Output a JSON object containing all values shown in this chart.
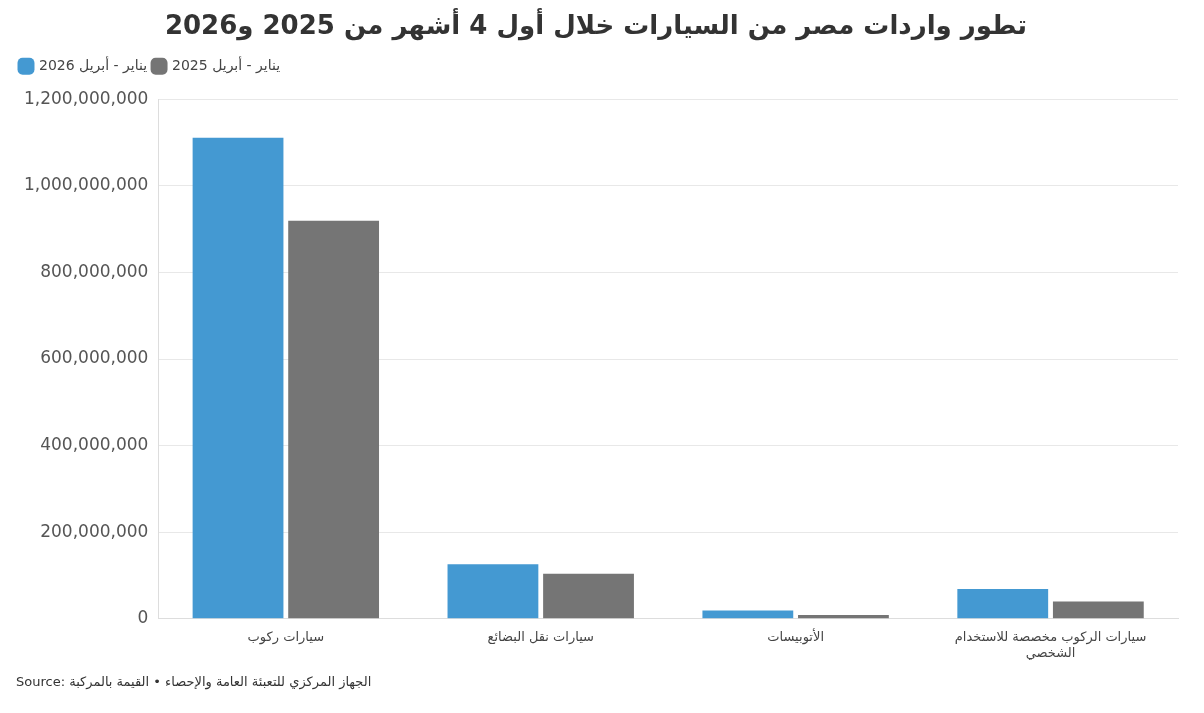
{
  "chart_data": {
    "type": "bar",
    "title": "تطور واردات مصر من السيارات خلال أول 4 أشهر من 2025 و2026",
    "categories": [
      "سيارات ركوب",
      "سيارات نقل البضائع",
      "الأتوبيسات",
      "سيارات الركوب مخصصة للاستخدام الشخصي"
    ],
    "series": [
      {
        "name": "يناير - أبريل 2026",
        "color": "#4499d2",
        "values": [
          1111000000,
          126000000,
          19000000,
          69000000
        ]
      },
      {
        "name": "يناير - أبريل 2025",
        "color": "#757575",
        "values": [
          919000000,
          104000000,
          9000000,
          40000000
        ]
      }
    ],
    "ylim": [
      0,
      1200000000
    ],
    "yticks": [
      0,
      {
        "value": 200000000,
        "label": "200,000,000"
      },
      {
        "value": 400000000,
        "label": "400,000,000"
      },
      {
        "value": 600000000,
        "label": "600,000,000"
      },
      {
        "value": 800000000,
        "label": "800,000,000"
      },
      {
        "value": 1000000000,
        "label": "1,000,000,000"
      },
      {
        "value": 1200000000,
        "label": "1,200,000,000"
      }
    ],
    "grid": "y",
    "legend": "top left",
    "annotations": [
      "Source: الجهاز المركزي للتعبئة العامة والإحصاء • القيمة بالمركبة"
    ]
  }
}
